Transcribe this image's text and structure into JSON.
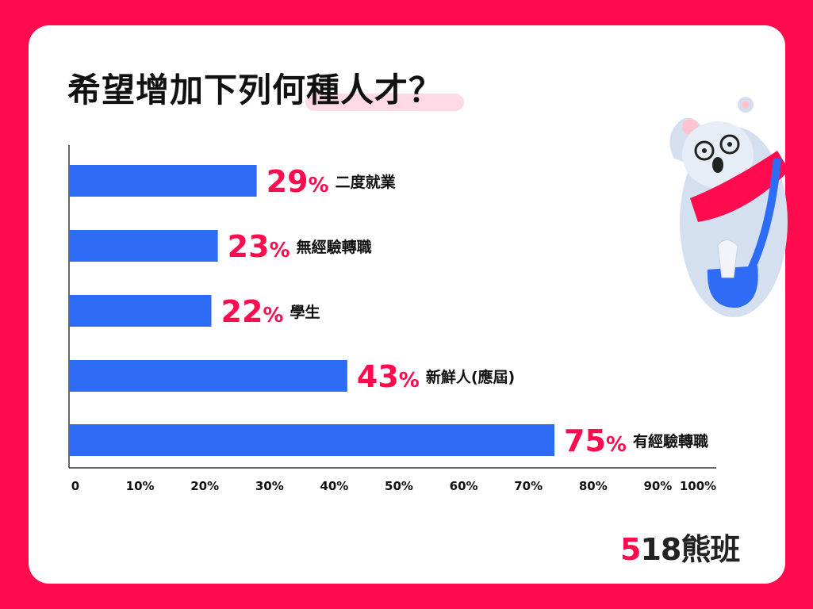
{
  "title": "希望增加下列何種人才？",
  "colors": {
    "background": "#ff0b4e",
    "bar": "#2f6cf6",
    "value": "#ff0b4e",
    "highlight": "#ffd9e3"
  },
  "logo": {
    "number_first": "5",
    "number_rest": "18",
    "name": "熊班"
  },
  "chart_data": {
    "type": "bar",
    "orientation": "horizontal",
    "title": "希望增加下列何種人才？",
    "xlim": [
      0,
      100
    ],
    "x_ticks": [
      "0",
      "10%",
      "20%",
      "30%",
      "40%",
      "50%",
      "60%",
      "70%",
      "80%",
      "90%",
      "100%"
    ],
    "bars": [
      {
        "label": "二度就業",
        "value": 29,
        "value_label": "29"
      },
      {
        "label": "無經驗轉職",
        "value": 23,
        "value_label": "23"
      },
      {
        "label": "學生",
        "value": 22,
        "value_label": "22"
      },
      {
        "label": "新鮮人(應屆)",
        "value": 43,
        "value_label": "43"
      },
      {
        "label": "有經驗轉職",
        "value": 75,
        "value_label": "75"
      }
    ],
    "percent_sign": "%",
    "grid": false
  }
}
